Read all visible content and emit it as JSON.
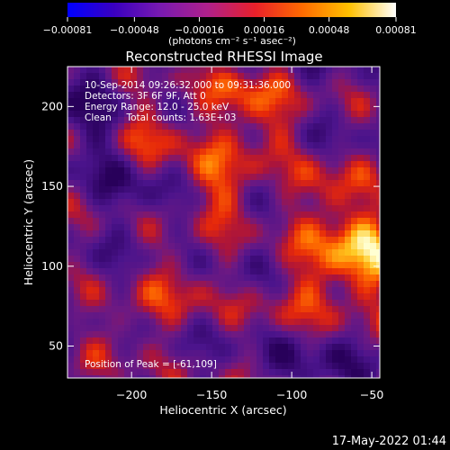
{
  "chart_data": {
    "type": "heatmap",
    "title": "Reconstructed RHESSI Image",
    "xlabel": "Heliocentric X (arcsec)",
    "ylabel": "Heliocentric Y (arcsec)",
    "xlim": [
      -240,
      -45
    ],
    "ylim": [
      30,
      225
    ],
    "x_ticks": [
      -200,
      -150,
      -100,
      -50
    ],
    "x_tick_labels": [
      "−200",
      "−150",
      "−100",
      "−50"
    ],
    "y_ticks": [
      50,
      100,
      150,
      200
    ],
    "y_tick_labels": [
      "50",
      "100",
      "150",
      "200"
    ],
    "colorbar": {
      "min": -0.00081,
      "max": 0.00081,
      "ticks": [
        -0.00081,
        -0.00048,
        -0.00016,
        0.00016,
        0.00048,
        0.00081
      ],
      "tick_labels": [
        "−0.00081",
        "−0.00048",
        "−0.00016",
        "0.00016",
        "0.00048",
        "0.00081"
      ],
      "unit_label": "(photons cm⁻² s⁻¹ asec⁻²)",
      "colors": [
        "#0000ff",
        "#3a00c0",
        "#7a1ab0",
        "#b0208a",
        "#e8202a",
        "#ff6a00",
        "#ffc000",
        "#ffffff"
      ]
    },
    "info_lines": [
      "10-Sep-2014 09:26:32.000 to 09:31:36.000",
      "Detectors: 3F 6F 9F, Att 0",
      "Energy Range: 12.0 - 25.0 keV",
      "Clean     Total counts: 1.63E+03"
    ],
    "peak_label": "Position of Peak = [-61,109]",
    "peak": [
      -61,
      109
    ],
    "grid": false
  },
  "timestamp": "17-May-2022 01:44"
}
